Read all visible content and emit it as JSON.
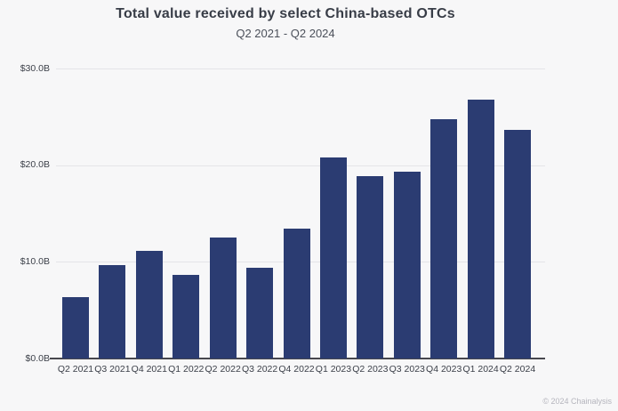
{
  "header": {
    "title": "Total value received by select China-based OTCs",
    "subtitle": "Q2 2021 - Q2 2024"
  },
  "footer": {
    "copyright": "© 2024 Chainalysis"
  },
  "colors": {
    "bar": "#2b3c72",
    "background": "#f7f7f8",
    "gridline": "#e4e4e8",
    "axis": "#47474d"
  },
  "chart_data": {
    "type": "bar",
    "title": "Total value received by select China-based OTCs",
    "subtitle": "Q2 2021 - Q2 2024",
    "categories": [
      "Q2 2021",
      "Q3 2021",
      "Q4 2021",
      "Q1 2022",
      "Q2 2022",
      "Q3 2022",
      "Q4 2022",
      "Q1 2023",
      "Q2 2023",
      "Q3 2023",
      "Q4 2023",
      "Q1 2024",
      "Q2 2024"
    ],
    "values": [
      6.4,
      9.7,
      11.1,
      8.7,
      12.5,
      9.4,
      13.4,
      20.8,
      18.9,
      19.3,
      24.8,
      26.8,
      23.7
    ],
    "value_unit": "USD billions",
    "y_ticks": [
      "$30.0B",
      "$20.0B",
      "$10.0B",
      "$0.0B"
    ],
    "ylim": [
      0,
      30
    ],
    "xlabel": "",
    "ylabel": "",
    "grid": "horizontal",
    "legend": "none"
  }
}
